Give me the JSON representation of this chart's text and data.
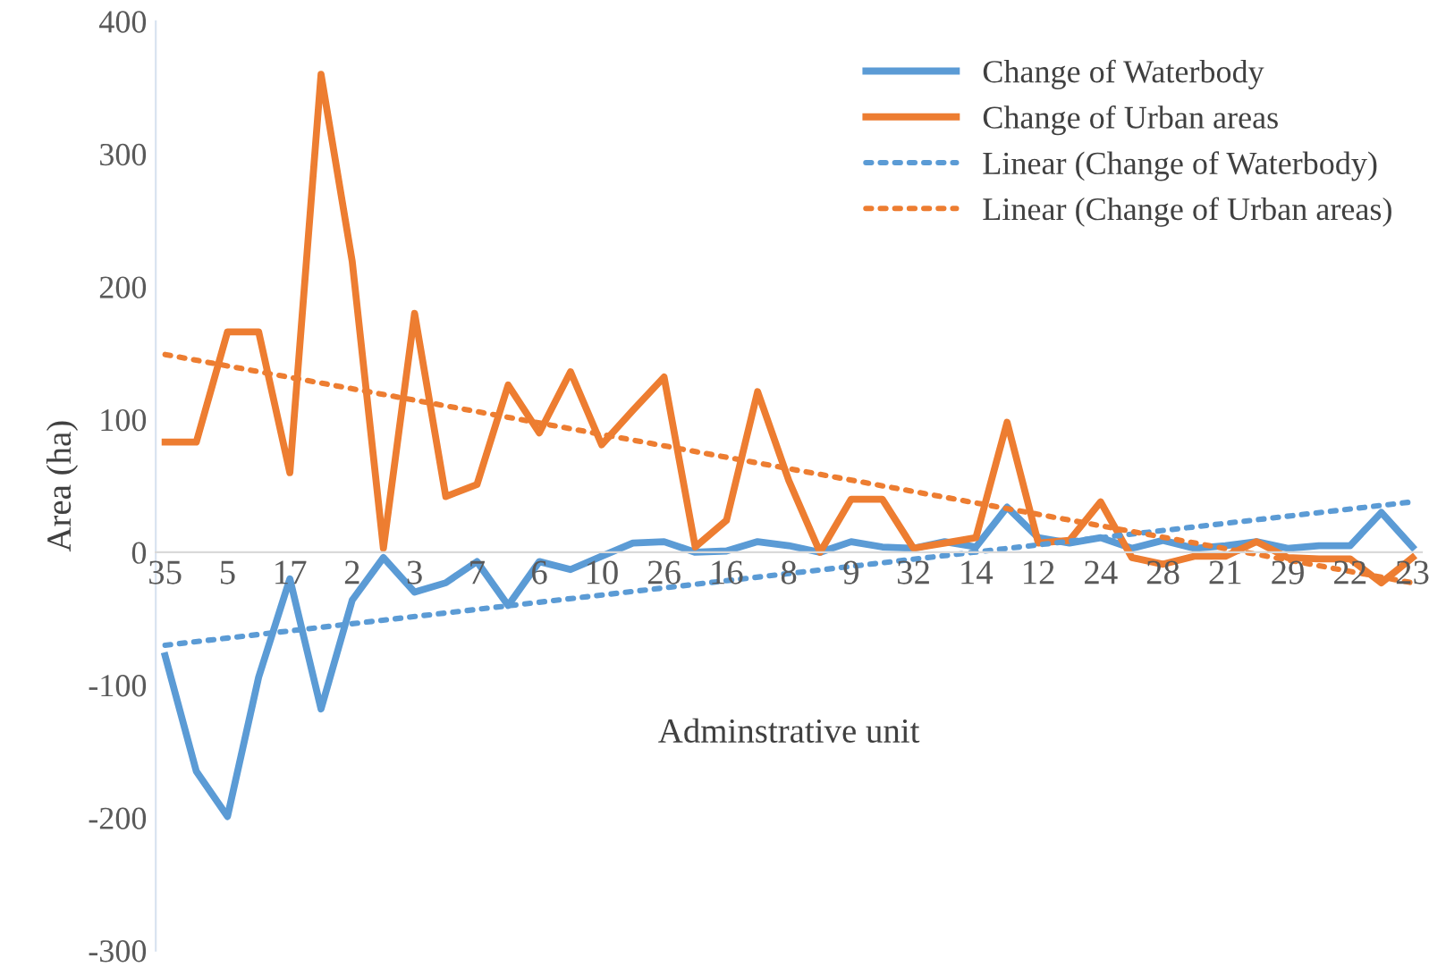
{
  "chart_data": {
    "type": "line",
    "ylabel": "Area (ha)",
    "xlabel": "Adminstrative unit",
    "categories": [
      "35",
      null,
      "5",
      null,
      "17",
      null,
      "2",
      null,
      "3",
      null,
      "7",
      null,
      "6",
      null,
      "10",
      null,
      "26",
      null,
      "16",
      null,
      "8",
      null,
      "9",
      null,
      "32",
      null,
      "14",
      null,
      "12",
      null,
      "24",
      null,
      "28",
      null,
      "21",
      null,
      "29",
      null,
      "22",
      null,
      "23"
    ],
    "series": [
      {
        "name": "Change of Waterbody",
        "color": "#5b9bd5",
        "line_style": "solid",
        "values": [
          -78,
          -165,
          -199,
          -94,
          -20,
          -118,
          -36,
          -4,
          -30,
          -23,
          -7,
          -40,
          -7,
          -13,
          -3,
          7,
          8,
          0,
          1,
          8,
          5,
          0,
          8,
          4,
          3,
          8,
          4,
          34,
          11,
          7,
          11,
          3,
          9,
          3,
          5,
          8,
          3,
          5,
          5,
          30,
          4
        ]
      },
      {
        "name": "Change of Urban areas",
        "color": "#ed7d31",
        "line_style": "solid",
        "values": [
          83,
          83,
          166,
          166,
          60,
          360,
          219,
          3,
          180,
          42,
          51,
          126,
          90,
          136,
          81,
          107,
          132,
          4,
          24,
          121,
          54,
          0,
          40,
          40,
          3,
          7,
          11,
          98,
          7,
          9,
          38,
          -4,
          -9,
          -3,
          -3,
          8,
          -4,
          -5,
          -5,
          -23,
          -4
        ]
      },
      {
        "name": "Linear (Change of Waterbody)",
        "color": "#5b9bd5",
        "line_style": "dotted",
        "values": [
          -70,
          null,
          null,
          null,
          null,
          null,
          null,
          null,
          null,
          null,
          null,
          null,
          null,
          null,
          null,
          null,
          null,
          null,
          null,
          null,
          null,
          null,
          null,
          null,
          null,
          null,
          null,
          null,
          null,
          null,
          null,
          null,
          null,
          null,
          null,
          null,
          null,
          null,
          null,
          null,
          38
        ]
      },
      {
        "name": "Linear (Change of Urban areas)",
        "color": "#ed7d31",
        "line_style": "dotted",
        "values": [
          149,
          null,
          null,
          null,
          null,
          null,
          null,
          null,
          null,
          null,
          null,
          null,
          null,
          null,
          null,
          null,
          null,
          null,
          null,
          null,
          null,
          null,
          null,
          null,
          null,
          null,
          null,
          null,
          null,
          null,
          null,
          null,
          null,
          null,
          null,
          null,
          null,
          null,
          null,
          null,
          -23
        ]
      }
    ],
    "ylim": [
      -300,
      400
    ],
    "yticks": [
      -300,
      -200,
      -100,
      0,
      100,
      200,
      300,
      400
    ],
    "grid": false,
    "legend": "top right",
    "marker": "none"
  }
}
